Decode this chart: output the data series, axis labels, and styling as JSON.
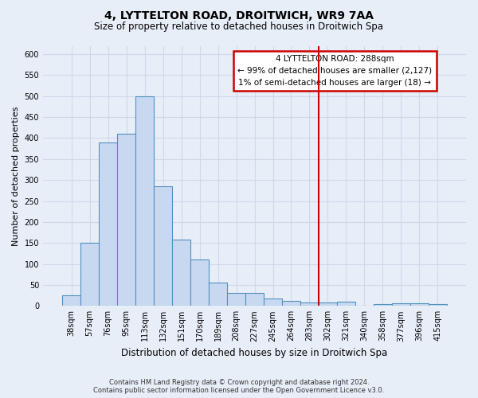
{
  "title": "4, LYTTELTON ROAD, DROITWICH, WR9 7AA",
  "subtitle": "Size of property relative to detached houses in Droitwich Spa",
  "xlabel": "Distribution of detached houses by size in Droitwich Spa",
  "ylabel": "Number of detached properties",
  "categories": [
    "38sqm",
    "57sqm",
    "76sqm",
    "95sqm",
    "113sqm",
    "132sqm",
    "151sqm",
    "170sqm",
    "189sqm",
    "208sqm",
    "227sqm",
    "245sqm",
    "264sqm",
    "283sqm",
    "302sqm",
    "321sqm",
    "340sqm",
    "358sqm",
    "377sqm",
    "396sqm",
    "415sqm"
  ],
  "values": [
    25,
    150,
    390,
    410,
    500,
    285,
    158,
    110,
    55,
    30,
    30,
    18,
    12,
    8,
    8,
    10,
    0,
    5,
    7,
    7,
    5
  ],
  "bar_color": "#c8d8f0",
  "bar_edge_color": "#5090c0",
  "vline_color": "#cc0000",
  "ylim": [
    0,
    620
  ],
  "yticks": [
    0,
    50,
    100,
    150,
    200,
    250,
    300,
    350,
    400,
    450,
    500,
    550,
    600
  ],
  "annotation_title": "4 LYTTELTON ROAD: 288sqm",
  "annotation_line1": "← 99% of detached houses are smaller (2,127)",
  "annotation_line2": "1% of semi-detached houses are larger (18) →",
  "annotation_box_color": "#ffffff",
  "annotation_box_edge": "#cc0000",
  "footer1": "Contains HM Land Registry data © Crown copyright and database right 2024.",
  "footer2": "Contains public sector information licensed under the Open Government Licence v3.0.",
  "background_color": "#e8eef8",
  "grid_color": "#d0d8e8"
}
